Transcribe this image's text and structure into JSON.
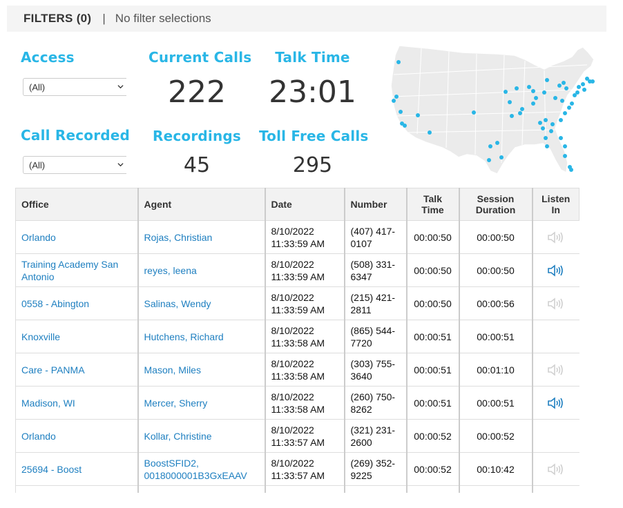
{
  "filters": {
    "label": "FILTERS (0)",
    "separator": "|",
    "summary": "No filter selections"
  },
  "kpis": {
    "access": {
      "title": "Access",
      "selected": "(All)"
    },
    "current_calls": {
      "title": "Current Calls",
      "value": "222"
    },
    "talk_time": {
      "title": "Talk Time",
      "value": "23:01"
    },
    "call_recorded": {
      "title": "Call Recorded",
      "selected": "(All)"
    },
    "recordings": {
      "title": "Recordings",
      "value": "45"
    },
    "toll_free": {
      "title": "Toll Free Calls",
      "value": "295"
    }
  },
  "map": {
    "icon": "us-map",
    "dot_color": "#29b6e6"
  },
  "table": {
    "columns": {
      "office": "Office",
      "agent": "Agent",
      "date": "Date",
      "number": "Number",
      "talk_time": "Talk Time",
      "session": "Session Duration",
      "listen": "Listen In"
    },
    "rows": [
      {
        "office": "Orlando",
        "agent": "Rojas, Christian",
        "date1": "8/10/2022",
        "date2": "11:33:59 AM",
        "num1": "(407) 417-",
        "num2": "0107",
        "talk": "00:00:50",
        "session": "00:00:50",
        "listen": "disabled"
      },
      {
        "office": "Training Academy San Antonio",
        "agent": "reyes, leena",
        "date1": "8/10/2022",
        "date2": "11:33:59 AM",
        "num1": "(508) 331-",
        "num2": "6347",
        "talk": "00:00:50",
        "session": "00:00:50",
        "listen": "active"
      },
      {
        "office": "0558 - Abington",
        "agent": "Salinas, Wendy",
        "date1": "8/10/2022",
        "date2": "11:33:59 AM",
        "num1": "(215) 421-",
        "num2": "2811",
        "talk": "00:00:50",
        "session": "00:00:56",
        "listen": "disabled"
      },
      {
        "office": "Knoxville",
        "agent": "Hutchens, Richard",
        "date1": "8/10/2022",
        "date2": "11:33:58 AM",
        "num1": "(865) 544-",
        "num2": "7720",
        "talk": "00:00:51",
        "session": "00:00:51",
        "listen": "none"
      },
      {
        "office": "Care - PANMA",
        "agent": "Mason, Miles",
        "date1": "8/10/2022",
        "date2": "11:33:58 AM",
        "num1": "(303) 755-",
        "num2": "3640",
        "talk": "00:00:51",
        "session": "00:01:10",
        "listen": "disabled"
      },
      {
        "office": "Madison, WI",
        "agent": "Mercer, Sherry",
        "date1": "8/10/2022",
        "date2": "11:33:58 AM",
        "num1": "(260) 750-",
        "num2": "8262",
        "talk": "00:00:51",
        "session": "00:00:51",
        "listen": "active"
      },
      {
        "office": "Orlando",
        "agent": "Kollar, Christine",
        "date1": "8/10/2022",
        "date2": "11:33:57 AM",
        "num1": "(321) 231-",
        "num2": "2600",
        "talk": "00:00:52",
        "session": "00:00:52",
        "listen": "none"
      },
      {
        "office": "25694 - Boost",
        "agent": "BoostSFID2, 0018000001B3GxEAAV",
        "date1": "8/10/2022",
        "date2": "11:33:57 AM",
        "num1": "(269) 352-",
        "num2": "9225",
        "talk": "00:00:52",
        "session": "00:10:42",
        "listen": "disabled"
      }
    ]
  },
  "colors": {
    "accent": "#29b6e6",
    "link": "#1e7fc0",
    "speaker_active": "#1e7fc0",
    "speaker_disabled": "#d0d0d0"
  }
}
